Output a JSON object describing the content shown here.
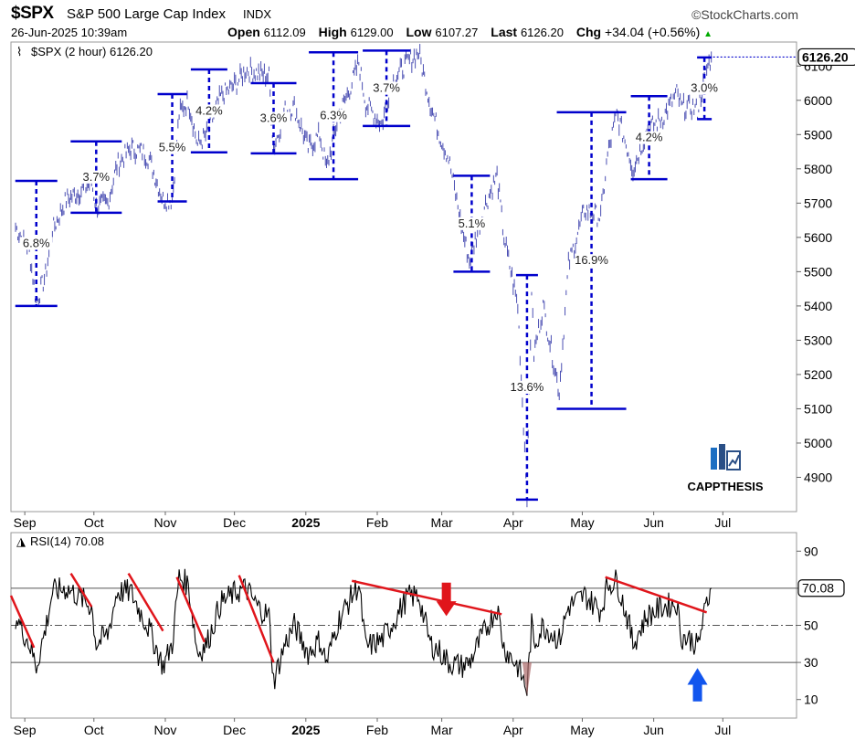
{
  "header": {
    "symbol": "$SPX",
    "name": "S&P 500 Large Cap Index",
    "exchange": "INDX",
    "brand": "©StockCharts.com",
    "datetime": "26-Jun-2025 10:39am",
    "open_label": "Open",
    "open": "6112.09",
    "high_label": "High",
    "high": "6129.00",
    "low_label": "Low",
    "low": "6107.27",
    "last_label": "Last",
    "last": "6126.20",
    "chg_label": "Chg",
    "chg": "+34.04 (+0.56%)"
  },
  "watermark": "CAPPTHESIS",
  "colors": {
    "price": "#4b4fb3",
    "swing": "#0000cc",
    "trend": "#e0151b",
    "arrow_down": "#e0151b",
    "arrow_up": "#1155ee",
    "rsi": "#000000"
  },
  "chart_data": [
    {
      "type": "line",
      "panel": "price",
      "legend": "$SPX (2 hour) 6126.20",
      "last_value_label": "6126.20",
      "ylim": [
        4800,
        6170
      ],
      "yticks": [
        4900,
        5000,
        5100,
        5200,
        5300,
        5400,
        5500,
        5600,
        5700,
        5800,
        5900,
        6000,
        6100
      ],
      "xtick_labels": [
        "Sep",
        "Oct",
        "Nov",
        "Dec",
        "2025",
        "Feb",
        "Mar",
        "Apr",
        "May",
        "Jun",
        "Jul"
      ],
      "series": [
        {
          "values_by_date": [
            [
              "2024-08-28",
              5630
            ],
            [
              "2024-09-03",
              5560
            ],
            [
              "2024-09-06",
              5410
            ],
            [
              "2024-09-10",
              5490
            ],
            [
              "2024-09-13",
              5620
            ],
            [
              "2024-09-19",
              5710
            ],
            [
              "2024-09-24",
              5730
            ],
            [
              "2024-09-30",
              5760
            ],
            [
              "2024-10-02",
              5690
            ],
            [
              "2024-10-07",
              5700
            ],
            [
              "2024-10-11",
              5810
            ],
            [
              "2024-10-17",
              5860
            ],
            [
              "2024-10-22",
              5850
            ],
            [
              "2024-10-25",
              5830
            ],
            [
              "2024-10-31",
              5710
            ],
            [
              "2024-11-04",
              5710
            ],
            [
              "2024-11-07",
              5960
            ],
            [
              "2024-11-11",
              6000
            ],
            [
              "2024-11-15",
              5870
            ],
            [
              "2024-11-19",
              5900
            ],
            [
              "2024-11-25",
              6010
            ],
            [
              "2024-12-02",
              6050
            ],
            [
              "2024-12-06",
              6090
            ],
            [
              "2024-12-11",
              6080
            ],
            [
              "2024-12-16",
              6070
            ],
            [
              "2024-12-18",
              5860
            ],
            [
              "2024-12-23",
              5970
            ],
            [
              "2024-12-27",
              5980
            ],
            [
              "2025-01-02",
              5860
            ],
            [
              "2025-01-07",
              5900
            ],
            [
              "2025-01-10",
              5800
            ],
            [
              "2025-01-15",
              5950
            ],
            [
              "2025-01-21",
              6050
            ],
            [
              "2025-01-24",
              6110
            ],
            [
              "2025-01-27",
              5990
            ],
            [
              "2025-02-03",
              5930
            ],
            [
              "2025-02-07",
              6050
            ],
            [
              "2025-02-14",
              6110
            ],
            [
              "2025-02-19",
              6140
            ],
            [
              "2025-02-24",
              5990
            ],
            [
              "2025-02-28",
              5900
            ],
            [
              "2025-03-04",
              5830
            ],
            [
              "2025-03-10",
              5620
            ],
            [
              "2025-03-13",
              5530
            ],
            [
              "2025-03-19",
              5680
            ],
            [
              "2025-03-25",
              5780
            ],
            [
              "2025-03-28",
              5600
            ],
            [
              "2025-04-03",
              5400
            ],
            [
              "2025-04-07",
              4850
            ],
            [
              "2025-04-09",
              5450
            ],
            [
              "2025-04-10",
              5260
            ],
            [
              "2025-04-14",
              5400
            ],
            [
              "2025-04-21",
              5150
            ],
            [
              "2025-04-25",
              5520
            ],
            [
              "2025-05-02",
              5680
            ],
            [
              "2025-05-09",
              5660
            ],
            [
              "2025-05-12",
              5840
            ],
            [
              "2025-05-16",
              5960
            ],
            [
              "2025-05-21",
              5850
            ],
            [
              "2025-05-23",
              5800
            ],
            [
              "2025-05-29",
              5910
            ],
            [
              "2025-06-05",
              5950
            ],
            [
              "2025-06-11",
              6020
            ],
            [
              "2025-06-13",
              5980
            ],
            [
              "2025-06-18",
              5980
            ],
            [
              "2025-06-20",
              5970
            ],
            [
              "2025-06-24",
              6090
            ],
            [
              "2025-06-26",
              6126.2
            ]
          ]
        }
      ],
      "swings": [
        {
          "label": "6.8%",
          "top": 5765,
          "bottom": 5400
        },
        {
          "label": "3.7%",
          "top": 5880,
          "bottom": 5672
        },
        {
          "label": "5.5%",
          "top": 6018,
          "bottom": 5705
        },
        {
          "label": "4.2%",
          "top": 6090,
          "bottom": 5848
        },
        {
          "label": "3.6%",
          "top": 6050,
          "bottom": 5845
        },
        {
          "label": "6.3%",
          "top": 6140,
          "bottom": 5770
        },
        {
          "label": "3.7%",
          "top": 6145,
          "bottom": 5925
        },
        {
          "label": "5.1%",
          "top": 5780,
          "bottom": 5500
        },
        {
          "label": "13.6%",
          "top": 5490,
          "bottom": 4835
        },
        {
          "label": "16.9%",
          "top": 5965,
          "bottom": 5100
        },
        {
          "label": "4.2%",
          "top": 6012,
          "bottom": 5770
        },
        {
          "label": "3.0%",
          "top": 6125,
          "bottom": 5945
        }
      ]
    },
    {
      "type": "line",
      "panel": "rsi",
      "legend": "RSI(14) 70.08",
      "last_value_label": "70.08",
      "ylim": [
        0,
        100
      ],
      "yticks": [
        10,
        30,
        50,
        70,
        90
      ],
      "reference_lines": [
        30,
        50,
        70
      ],
      "xtick_labels": [
        "Sep",
        "Oct",
        "Nov",
        "Dec",
        "2025",
        "Feb",
        "Mar",
        "Apr",
        "May",
        "Jun",
        "Jul"
      ],
      "series": [
        {
          "values_by_date": [
            [
              "2024-08-28",
              55
            ],
            [
              "2024-09-03",
              40
            ],
            [
              "2024-09-06",
              28
            ],
            [
              "2024-09-10",
              48
            ],
            [
              "2024-09-13",
              68
            ],
            [
              "2024-09-19",
              70
            ],
            [
              "2024-09-24",
              66
            ],
            [
              "2024-09-30",
              60
            ],
            [
              "2024-10-02",
              40
            ],
            [
              "2024-10-07",
              45
            ],
            [
              "2024-10-11",
              68
            ],
            [
              "2024-10-17",
              68
            ],
            [
              "2024-10-22",
              55
            ],
            [
              "2024-10-25",
              48
            ],
            [
              "2024-10-31",
              28
            ],
            [
              "2024-11-04",
              40
            ],
            [
              "2024-11-07",
              76
            ],
            [
              "2024-11-11",
              72
            ],
            [
              "2024-11-15",
              35
            ],
            [
              "2024-11-19",
              40
            ],
            [
              "2024-11-25",
              62
            ],
            [
              "2024-12-02",
              68
            ],
            [
              "2024-12-06",
              70
            ],
            [
              "2024-12-11",
              60
            ],
            [
              "2024-12-16",
              55
            ],
            [
              "2024-12-18",
              20
            ],
            [
              "2024-12-23",
              40
            ],
            [
              "2024-12-27",
              50
            ],
            [
              "2025-01-02",
              35
            ],
            [
              "2025-01-07",
              42
            ],
            [
              "2025-01-10",
              30
            ],
            [
              "2025-01-15",
              52
            ],
            [
              "2025-01-21",
              66
            ],
            [
              "2025-01-24",
              72
            ],
            [
              "2025-01-27",
              38
            ],
            [
              "2025-02-03",
              42
            ],
            [
              "2025-02-07",
              50
            ],
            [
              "2025-02-14",
              65
            ],
            [
              "2025-02-19",
              66
            ],
            [
              "2025-02-24",
              40
            ],
            [
              "2025-02-28",
              36
            ],
            [
              "2025-03-04",
              30
            ],
            [
              "2025-03-10",
              28
            ],
            [
              "2025-03-13",
              30
            ],
            [
              "2025-03-19",
              45
            ],
            [
              "2025-03-25",
              60
            ],
            [
              "2025-03-28",
              38
            ],
            [
              "2025-04-03",
              28
            ],
            [
              "2025-04-07",
              15
            ],
            [
              "2025-04-09",
              50
            ],
            [
              "2025-04-10",
              40
            ],
            [
              "2025-04-14",
              50
            ],
            [
              "2025-04-21",
              42
            ],
            [
              "2025-04-25",
              60
            ],
            [
              "2025-05-02",
              66
            ],
            [
              "2025-05-09",
              58
            ],
            [
              "2025-05-12",
              72
            ],
            [
              "2025-05-16",
              74
            ],
            [
              "2025-05-21",
              52
            ],
            [
              "2025-05-23",
              40
            ],
            [
              "2025-05-29",
              55
            ],
            [
              "2025-06-05",
              60
            ],
            [
              "2025-06-11",
              62
            ],
            [
              "2025-06-13",
              44
            ],
            [
              "2025-06-18",
              42
            ],
            [
              "2025-06-20",
              38
            ],
            [
              "2025-06-24",
              62
            ],
            [
              "2025-06-26",
              70.08
            ]
          ]
        }
      ],
      "trendlines": [
        {
          "from": [
            "2024-08-26",
            66
          ],
          "to": [
            "2024-09-05",
            38
          ]
        },
        {
          "from": [
            "2024-09-21",
            78
          ],
          "to": [
            "2024-09-30",
            60
          ]
        },
        {
          "from": [
            "2024-10-16",
            78
          ],
          "to": [
            "2024-10-31",
            47
          ]
        },
        {
          "from": [
            "2024-11-06",
            76
          ],
          "to": [
            "2024-11-18",
            41
          ]
        },
        {
          "from": [
            "2024-12-03",
            77
          ],
          "to": [
            "2024-12-18",
            30
          ]
        },
        {
          "from": [
            "2025-01-21",
            74
          ],
          "to": [
            "2025-03-27",
            56
          ]
        },
        {
          "from": [
            "2025-05-11",
            76
          ],
          "to": [
            "2025-06-24",
            57
          ]
        }
      ]
    }
  ]
}
